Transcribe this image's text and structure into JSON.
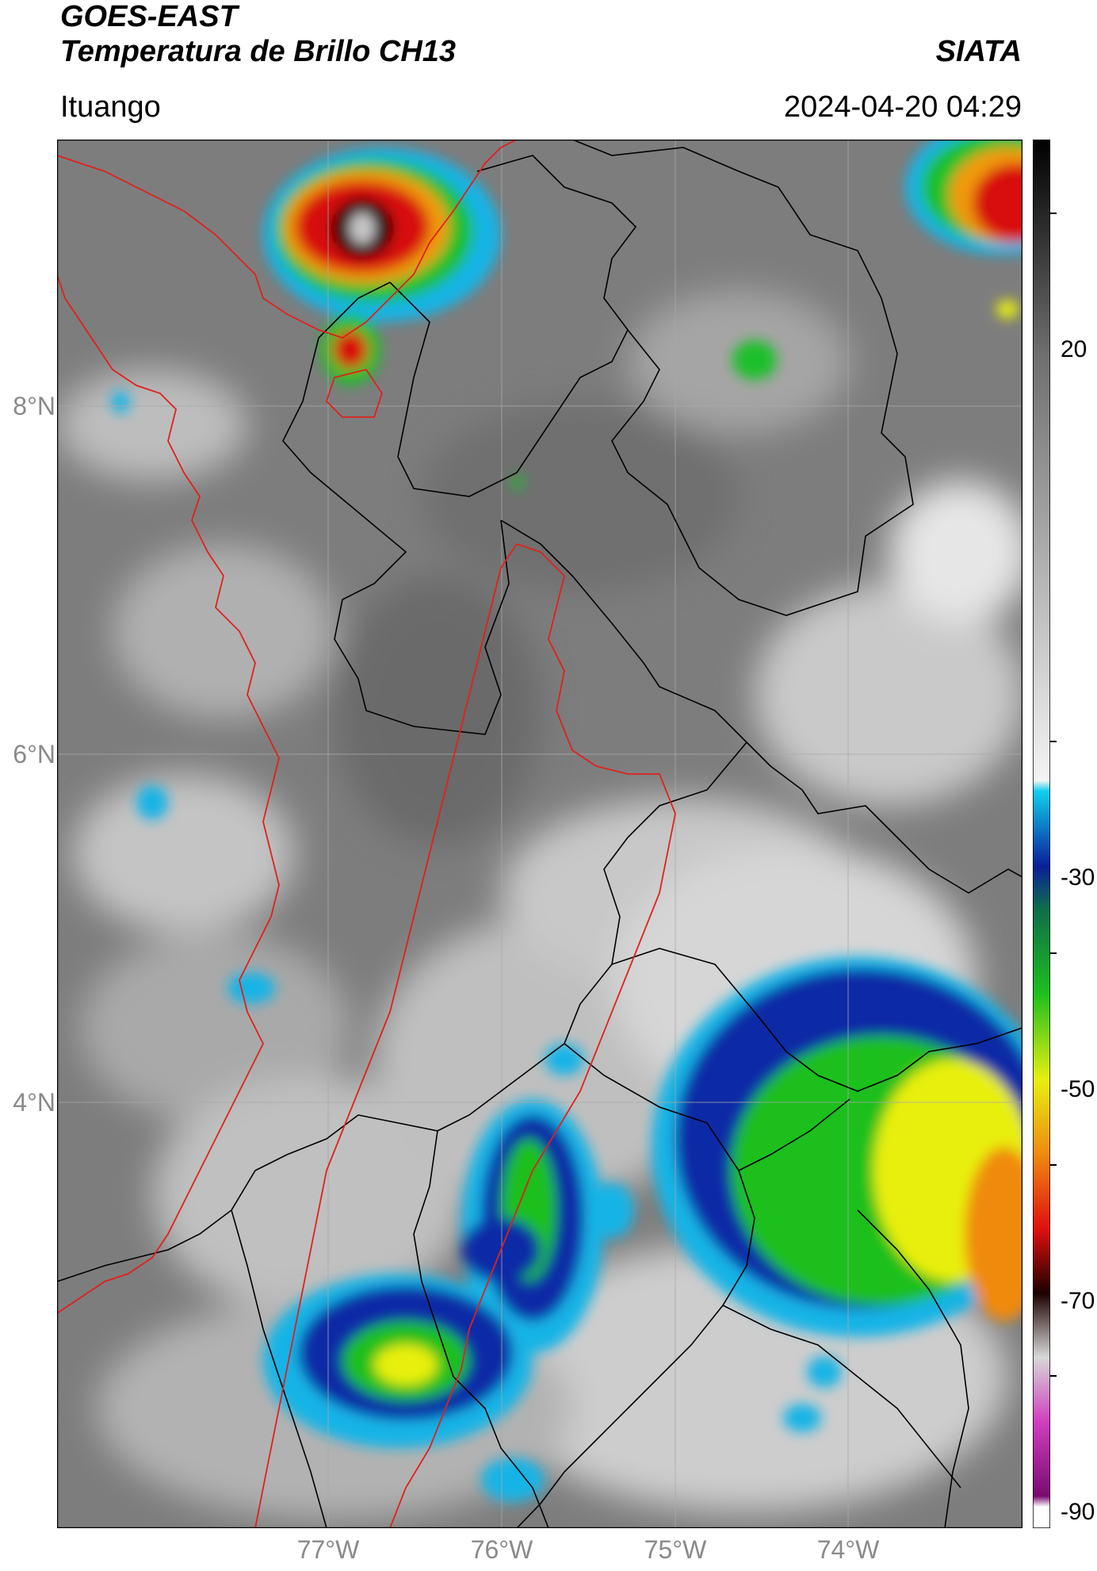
{
  "header": {
    "title_line1": "GOES-EAST",
    "title_line2": "Temperatura de Brillo CH13",
    "organization": "SIATA",
    "region": "Ituango",
    "timestamp": "2024-04-20 04:29"
  },
  "map": {
    "lat_labels": [
      "8°N",
      "6°N",
      "4°N"
    ],
    "lon_labels": [
      "77°W",
      "76°W",
      "75°W",
      "74°W"
    ],
    "colors": {
      "background_gray": "#7d7d7d",
      "country_border": "#e0201c",
      "admin_border": "#000000",
      "gridline": "#a9a9a9"
    }
  },
  "colorbar": {
    "tick_labels": [
      "20",
      "-30",
      "-50",
      "-70",
      "-90"
    ],
    "stops": [
      {
        "value": 40,
        "color": "#000000"
      },
      {
        "value": 20,
        "color": "#6e6e6e"
      },
      {
        "value": -20,
        "color": "#f4f4f4"
      },
      {
        "value": -21,
        "color": "#10d0ee"
      },
      {
        "value": -28,
        "color": "#0a1f9a"
      },
      {
        "value": -32,
        "color": "#0e6d4a"
      },
      {
        "value": -40,
        "color": "#1fbf1f"
      },
      {
        "value": -48,
        "color": "#e8ef10"
      },
      {
        "value": -55,
        "color": "#f08a10"
      },
      {
        "value": -62,
        "color": "#e00f0f"
      },
      {
        "value": -68,
        "color": "#1c0000"
      },
      {
        "value": -74,
        "color": "#d8d8d8"
      },
      {
        "value": -80,
        "color": "#d040c0"
      },
      {
        "value": -87,
        "color": "#7a0a70"
      },
      {
        "value": -88,
        "color": "#ffffff"
      }
    ]
  }
}
